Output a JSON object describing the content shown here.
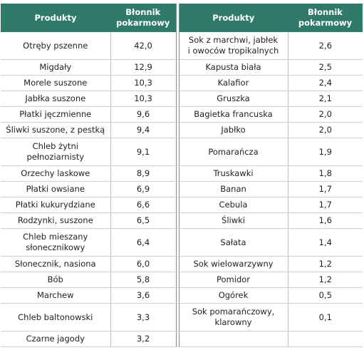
{
  "left": {
    "header": {
      "product": "Produkty",
      "fiber": "Błonnik\npokarmowy"
    },
    "rows": [
      [
        "Otręby pszenne",
        "42,0"
      ],
      [
        "Migdały",
        "12,9"
      ],
      [
        "Morele suszone",
        "10,3"
      ],
      [
        "Jabłka suszone",
        "10,3"
      ],
      [
        "Płatki jęczmienne",
        "9,6"
      ],
      [
        "Śliwki suszone, z pestką",
        "9,4"
      ],
      [
        "Chleb żytni\npełnoziarnisty",
        "9,1"
      ],
      [
        "Orzechy laskowe",
        "8,9"
      ],
      [
        "Płatki owsiane",
        "6,9"
      ],
      [
        "Płatki kukurydziane",
        "6,6"
      ],
      [
        "Rodzynki, suszone",
        "6,5"
      ],
      [
        "Chleb mieszany\nsłonecznikowy",
        "6,4"
      ],
      [
        "Słonecznik, nasiona",
        "6,0"
      ],
      [
        "Bób",
        "5,8"
      ],
      [
        "Marchew",
        "3,6"
      ],
      [
        "Chleb baltonowski",
        "3,3"
      ],
      [
        "Czarne jagody",
        "3,2"
      ]
    ]
  },
  "right": {
    "header": {
      "product": "Produkty",
      "fiber": "Błonnik\npokarmowy"
    },
    "rows": [
      [
        "Sok z marchwi, jabłek\ni owoców tropikalnych",
        "2,6"
      ],
      [
        "Kapusta biała",
        "2,5"
      ],
      [
        "Kalafior",
        "2,4"
      ],
      [
        "Gruszka",
        "2,1"
      ],
      [
        "Bagietka francuska",
        "2,0"
      ],
      [
        "Jabłko",
        "2,0"
      ],
      [
        "Pomarańcza",
        "1,9"
      ],
      [
        "Truskawki",
        "1,8"
      ],
      [
        "Banan",
        "1,7"
      ],
      [
        "Cebula",
        "1,7"
      ],
      [
        "Śliwki",
        "1,6"
      ],
      [
        "Sałata",
        "1,4"
      ],
      [
        "Sok wielowarzywny",
        "1,2"
      ],
      [
        "Pomidor",
        "1,2"
      ],
      [
        "Ogórek",
        "0,5"
      ],
      [
        "Sok pomarańczowy,\nklarowny",
        "0,1"
      ]
    ]
  }
}
